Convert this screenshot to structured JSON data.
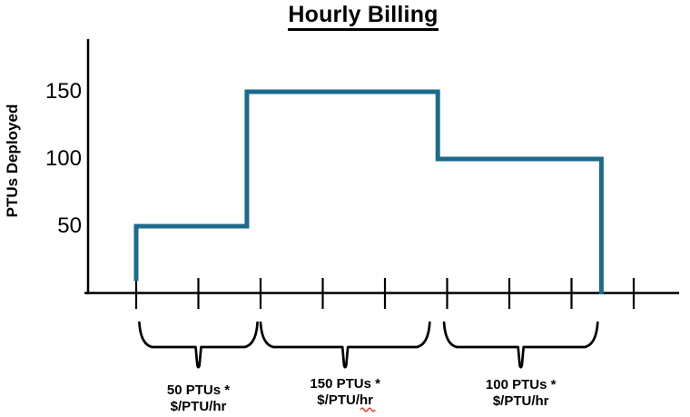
{
  "page": {
    "background": "#ffffff"
  },
  "chart_data": {
    "type": "line",
    "line_style": "step",
    "title": "Hourly Billing",
    "title_underlined": true,
    "ylabel": "PTUs Deployed",
    "xlabel": "",
    "yticks": [
      50,
      100,
      150
    ],
    "ylim": [
      0,
      185
    ],
    "x_axis": {
      "tick_count": 9,
      "tick_labels": [],
      "unit_implied": "hours"
    },
    "grid": false,
    "legend": false,
    "colors": {
      "line": "#1e6a8d",
      "axis": "#000000",
      "text": "#000000",
      "brace": "#000000",
      "spellcheck_squiggle": "#d9453a"
    },
    "steps": [
      {
        "start_hour": 0.0,
        "end_hour": 1.78,
        "ptus_deployed": 50
      },
      {
        "start_hour": 1.78,
        "end_hour": 4.85,
        "ptus_deployed": 150
      },
      {
        "start_hour": 4.85,
        "end_hour": 7.48,
        "ptus_deployed": 100
      }
    ],
    "annotations": [
      {
        "brace_start_hour": 0.05,
        "brace_end_hour": 1.95,
        "line1": "50 PTUs *",
        "line2": "$/PTU/hr",
        "spellcheck_squiggle_on_line2": false
      },
      {
        "brace_start_hour": 2.0,
        "brace_end_hour": 4.72,
        "line1": "150 PTUs *",
        "line2": "$/PTU/hr",
        "spellcheck_squiggle_on_line2": true
      },
      {
        "brace_start_hour": 4.95,
        "brace_end_hour": 7.42,
        "line1": "100 PTUs *",
        "line2": "$/PTU/hr",
        "spellcheck_squiggle_on_line2": false
      }
    ]
  }
}
